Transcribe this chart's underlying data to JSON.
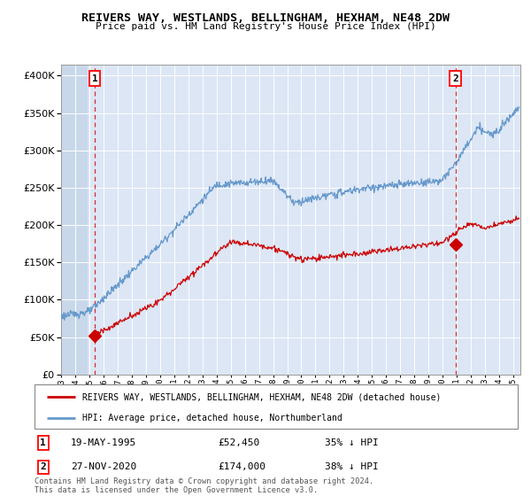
{
  "title1": "REIVERS WAY, WESTLANDS, BELLINGHAM, HEXHAM, NE48 2DW",
  "title2": "Price paid vs. HM Land Registry's House Price Index (HPI)",
  "ytick_vals": [
    0,
    50000,
    100000,
    150000,
    200000,
    250000,
    300000,
    350000,
    400000
  ],
  "ylim": [
    0,
    415000
  ],
  "xlim_start": 1993.0,
  "xlim_end": 2025.5,
  "marker1_x": 1995.38,
  "marker1_y": 52450,
  "marker2_x": 2020.9,
  "marker2_y": 174000,
  "legend_line1": "REIVERS WAY, WESTLANDS, BELLINGHAM, HEXHAM, NE48 2DW (detached house)",
  "legend_line2": "HPI: Average price, detached house, Northumberland",
  "ann1_label": "1",
  "ann2_label": "2",
  "ann1_date": "19-MAY-1995",
  "ann1_price": "£52,450",
  "ann1_pct": "35% ↓ HPI",
  "ann2_date": "27-NOV-2020",
  "ann2_price": "£174,000",
  "ann2_pct": "38% ↓ HPI",
  "footer": "Contains HM Land Registry data © Crown copyright and database right 2024.\nThis data is licensed under the Open Government Licence v3.0.",
  "hpi_color": "#6699cc",
  "price_color": "#cc0000",
  "bg_plot": "#dce6f5",
  "bg_hatch": "#c8d8ea",
  "grid_color": "#ffffff",
  "dashed_vline_color": "#cc0000"
}
